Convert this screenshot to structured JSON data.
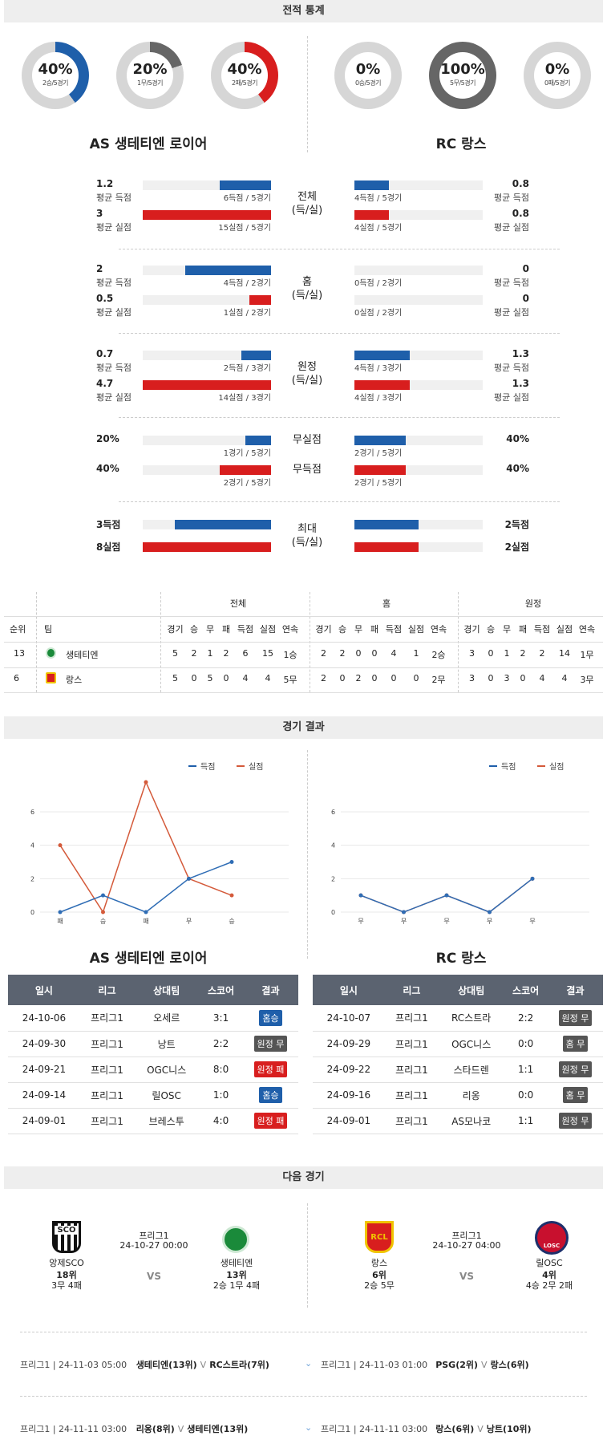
{
  "sections": {
    "stats": "전적 통계",
    "results": "경기 결과",
    "next": "다음 경기"
  },
  "rings": [
    {
      "pct": "40%",
      "sub": "2승/5경기",
      "color": "#1f5faa",
      "frac": 0.4
    },
    {
      "pct": "20%",
      "sub": "1무/5경기",
      "color": "#666666",
      "frac": 0.2
    },
    {
      "pct": "40%",
      "sub": "2패/5경기",
      "color": "#d81e1e",
      "frac": 0.4
    },
    {
      "pct": "0%",
      "sub": "0승/5경기",
      "color": "#1f5faa",
      "frac": 0
    },
    {
      "pct": "100%",
      "sub": "5무/5경기",
      "color": "#666666",
      "frac": 1
    },
    {
      "pct": "0%",
      "sub": "0패/5경기",
      "color": "#d81e1e",
      "frac": 0
    }
  ],
  "teams": {
    "home": "AS 생테티엔 로이어",
    "away": "RC 랑스"
  },
  "groups": [
    {
      "center": [
        "전체",
        "(득/실)"
      ],
      "rows": [
        {
          "ln": "1.2",
          "ll": "평균 득점",
          "lc": "6득점 / 5경기",
          "lf": 0.4,
          "rn": "0.8",
          "rl": "평균 득점",
          "rc": "4득점 / 5경기",
          "rf": 0.27,
          "color": "blue"
        },
        {
          "ln": "3",
          "ll": "평균 실점",
          "lc": "15실점 / 5경기",
          "lf": 1,
          "rn": "0.8",
          "rl": "평균 실점",
          "rc": "4실점 / 5경기",
          "rf": 0.27,
          "color": "red"
        }
      ]
    },
    {
      "center": [
        "홈",
        "(득/실)"
      ],
      "rows": [
        {
          "ln": "2",
          "ll": "평균 득점",
          "lc": "4득점 / 2경기",
          "lf": 0.67,
          "rn": "0",
          "rl": "평균 득점",
          "rc": "0득점 / 2경기",
          "rf": 0,
          "color": "blue"
        },
        {
          "ln": "0.5",
          "ll": "평균 실점",
          "lc": "1실점 / 2경기",
          "lf": 0.17,
          "rn": "0",
          "rl": "평균 실점",
          "rc": "0실점 / 2경기",
          "rf": 0,
          "color": "red"
        }
      ]
    },
    {
      "center": [
        "원정",
        "(득/실)"
      ],
      "rows": [
        {
          "ln": "0.7",
          "ll": "평균 득점",
          "lc": "2득점 / 3경기",
          "lf": 0.23,
          "rn": "1.3",
          "rl": "평균 득점",
          "rc": "4득점 / 3경기",
          "rf": 0.43,
          "color": "blue"
        },
        {
          "ln": "4.7",
          "ll": "평균 실점",
          "lc": "14실점 / 3경기",
          "lf": 1,
          "rn": "1.3",
          "rl": "평균 실점",
          "rc": "4실점 / 3경기",
          "rf": 0.43,
          "color": "red"
        }
      ]
    }
  ],
  "pcts": [
    {
      "center": "무실점",
      "ln": "20%",
      "lc": "1경기 / 5경기",
      "lf": 0.2,
      "rn": "40%",
      "rc": "2경기 / 5경기",
      "rf": 0.4,
      "color": "blue"
    },
    {
      "center": "무득점",
      "ln": "40%",
      "lc": "2경기 / 5경기",
      "lf": 0.4,
      "rn": "40%",
      "rc": "2경기 / 5경기",
      "rf": 0.4,
      "color": "red"
    }
  ],
  "max": {
    "center": [
      "최대",
      "(득/실)"
    ],
    "rows": [
      {
        "ln": "3득점",
        "lf": 0.75,
        "rn": "2득점",
        "rf": 0.5,
        "color": "blue"
      },
      {
        "ln": "8실점",
        "lf": 1,
        "rn": "2실점",
        "rf": 0.5,
        "color": "red"
      }
    ]
  },
  "rank": {
    "groups": [
      "전체",
      "홈",
      "원정"
    ],
    "h1": [
      "순위",
      "팀"
    ],
    "cols": [
      "경기",
      "승",
      "무",
      "패",
      "득점",
      "실점",
      "연속"
    ],
    "rows": [
      {
        "rank": "13",
        "team": "생테티엔",
        "vals": [
          "5",
          "2",
          "1",
          "2",
          "6",
          "15",
          "1승",
          "2",
          "2",
          "0",
          "0",
          "4",
          "1",
          "2승",
          "3",
          "0",
          "1",
          "2",
          "2",
          "14",
          "1무"
        ]
      },
      {
        "rank": "6",
        "team": "랑스",
        "vals": [
          "5",
          "0",
          "5",
          "0",
          "4",
          "4",
          "5무",
          "2",
          "0",
          "2",
          "0",
          "0",
          "0",
          "2무",
          "3",
          "0",
          "3",
          "0",
          "4",
          "4",
          "3무"
        ]
      }
    ]
  },
  "charts": {
    "legend": [
      "득점",
      "실점"
    ],
    "yticks": [
      "0",
      "2",
      "4",
      "6"
    ]
  },
  "chart_data": [
    {
      "type": "line",
      "x": [
        "패",
        "승",
        "패",
        "무",
        "승"
      ],
      "series": [
        {
          "name": "득점",
          "values": [
            0,
            1,
            0,
            2,
            3
          ]
        },
        {
          "name": "실점",
          "values": [
            4,
            0,
            8,
            2,
            1
          ]
        }
      ],
      "ylim": [
        0,
        6
      ]
    },
    {
      "type": "line",
      "x": [
        "무",
        "무",
        "무",
        "무",
        "무"
      ],
      "series": [
        {
          "name": "득점",
          "values": [
            1,
            0,
            1,
            0,
            2
          ]
        },
        {
          "name": "실점",
          "values": [
            1,
            0,
            1,
            0,
            2
          ]
        }
      ],
      "ylim": [
        0,
        6
      ]
    }
  ],
  "gamesHeaders": [
    "일시",
    "리그",
    "상대팀",
    "스코어",
    "결과"
  ],
  "homeGames": [
    [
      "24-10-06",
      "프리그1",
      "오세르",
      "3:1",
      "홈승",
      "#1f5faa"
    ],
    [
      "24-09-30",
      "프리그1",
      "낭트",
      "2:2",
      "원정 무",
      "#555555"
    ],
    [
      "24-09-21",
      "프리그1",
      "OGC니스",
      "8:0",
      "원정 패",
      "#d81e1e"
    ],
    [
      "24-09-14",
      "프리그1",
      "릴OSC",
      "1:0",
      "홈승",
      "#1f5faa"
    ],
    [
      "24-09-01",
      "프리그1",
      "브레스투",
      "4:0",
      "원정 패",
      "#d81e1e"
    ]
  ],
  "awayGames": [
    [
      "24-10-07",
      "프리그1",
      "RC스트라",
      "2:2",
      "원정 무",
      "#555555"
    ],
    [
      "24-09-29",
      "프리그1",
      "OGC니스",
      "0:0",
      "홈 무",
      "#555555"
    ],
    [
      "24-09-22",
      "프리그1",
      "스타드렌",
      "1:1",
      "원정 무",
      "#555555"
    ],
    [
      "24-09-16",
      "프리그1",
      "리옹",
      "0:0",
      "홈 무",
      "#555555"
    ],
    [
      "24-09-01",
      "프리그1",
      "AS모나코",
      "1:1",
      "원정 무",
      "#555555"
    ]
  ],
  "next": [
    {
      "league": "프리그1",
      "date": "24-10-27 00:00",
      "vs": "VS",
      "h": {
        "name": "앙제SCO",
        "logo": "SCO",
        "rank": "18위",
        "rec": "3무 4패"
      },
      "a": {
        "name": "생테티엔",
        "logo": "",
        "rank": "13위",
        "rec": "2승 1무 4패"
      }
    },
    {
      "league": "프리그1",
      "date": "24-10-27 04:00",
      "vs": "VS",
      "h": {
        "name": "랑스",
        "logo": "RCL",
        "rank": "6위",
        "rec": "2승 5무"
      },
      "a": {
        "name": "릴OSC",
        "logo": "LOSC",
        "rank": "4위",
        "rec": "4승 2무 2패"
      }
    }
  ],
  "upcoming": [
    {
      "l": "프리그1 | 24-11-03 05:00",
      "t": "생테티엔(13위)",
      "v": "V",
      "o": "RC스트라(7위)",
      "rl": "프리그1 | 24-11-03 01:00",
      "rt": "PSG(2위)",
      "rv": "V",
      "ro": "랑스(6위)"
    },
    {
      "l": "프리그1 | 24-11-11 03:00",
      "t": "리옹(8위)",
      "v": "V",
      "o": "생테티엔(13위)",
      "rl": "프리그1 | 24-11-11 03:00",
      "rt": "랑스(6위)",
      "rv": "V",
      "ro": "낭트(10위)"
    }
  ]
}
